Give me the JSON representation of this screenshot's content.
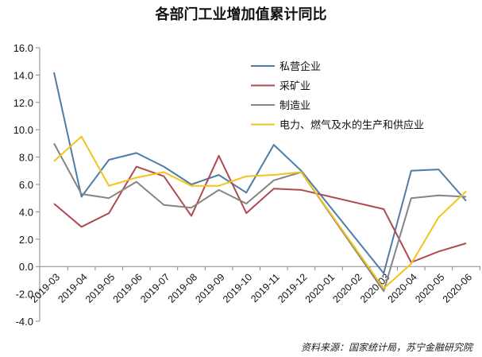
{
  "chart_data": {
    "type": "line",
    "title": "各部门工业增加值累计同比",
    "categories": [
      "2019-03",
      "2019-04",
      "2019-05",
      "2019-06",
      "2019-07",
      "2019-08",
      "2019-09",
      "2019-10",
      "2019-11",
      "2019-12",
      "2020-01",
      "2020-02",
      "2020-03",
      "2020-04",
      "2020-05",
      "2020-06"
    ],
    "ylim": [
      -4,
      16
    ],
    "yticks": [
      "16.0",
      "14.0",
      "12.0",
      "10.0",
      "8.0",
      "6.0",
      "4.0",
      "2.0",
      "0.0",
      "-2.0",
      "-4.0"
    ],
    "grid": false,
    "legend_position": "top-right",
    "series": [
      {
        "name": "私营企业",
        "color": "#4f7ca6",
        "values": [
          14.2,
          5.1,
          7.8,
          8.3,
          7.3,
          6.0,
          6.7,
          5.4,
          8.9,
          7.0,
          null,
          null,
          -0.5,
          7.0,
          7.1,
          4.8
        ]
      },
      {
        "name": "采矿业",
        "color": "#b04a52",
        "values": [
          4.6,
          2.9,
          3.9,
          7.3,
          6.6,
          3.7,
          8.1,
          3.9,
          5.7,
          5.6,
          null,
          null,
          4.2,
          0.3,
          1.1,
          1.7
        ]
      },
      {
        "name": "制造业",
        "color": "#858585",
        "values": [
          9.0,
          5.3,
          5.0,
          6.2,
          4.5,
          4.3,
          5.6,
          4.6,
          6.3,
          6.9,
          null,
          null,
          -1.8,
          5.0,
          5.2,
          5.1
        ]
      },
      {
        "name": "电力、燃气及水的生产和供应业",
        "color": "#f2c318",
        "values": [
          7.7,
          9.5,
          5.9,
          6.5,
          6.9,
          5.9,
          5.9,
          6.6,
          6.7,
          6.9,
          null,
          null,
          -1.6,
          0.2,
          3.6,
          5.5
        ]
      }
    ],
    "source": "资料来源：国家统计局，苏宁金融研究院"
  }
}
